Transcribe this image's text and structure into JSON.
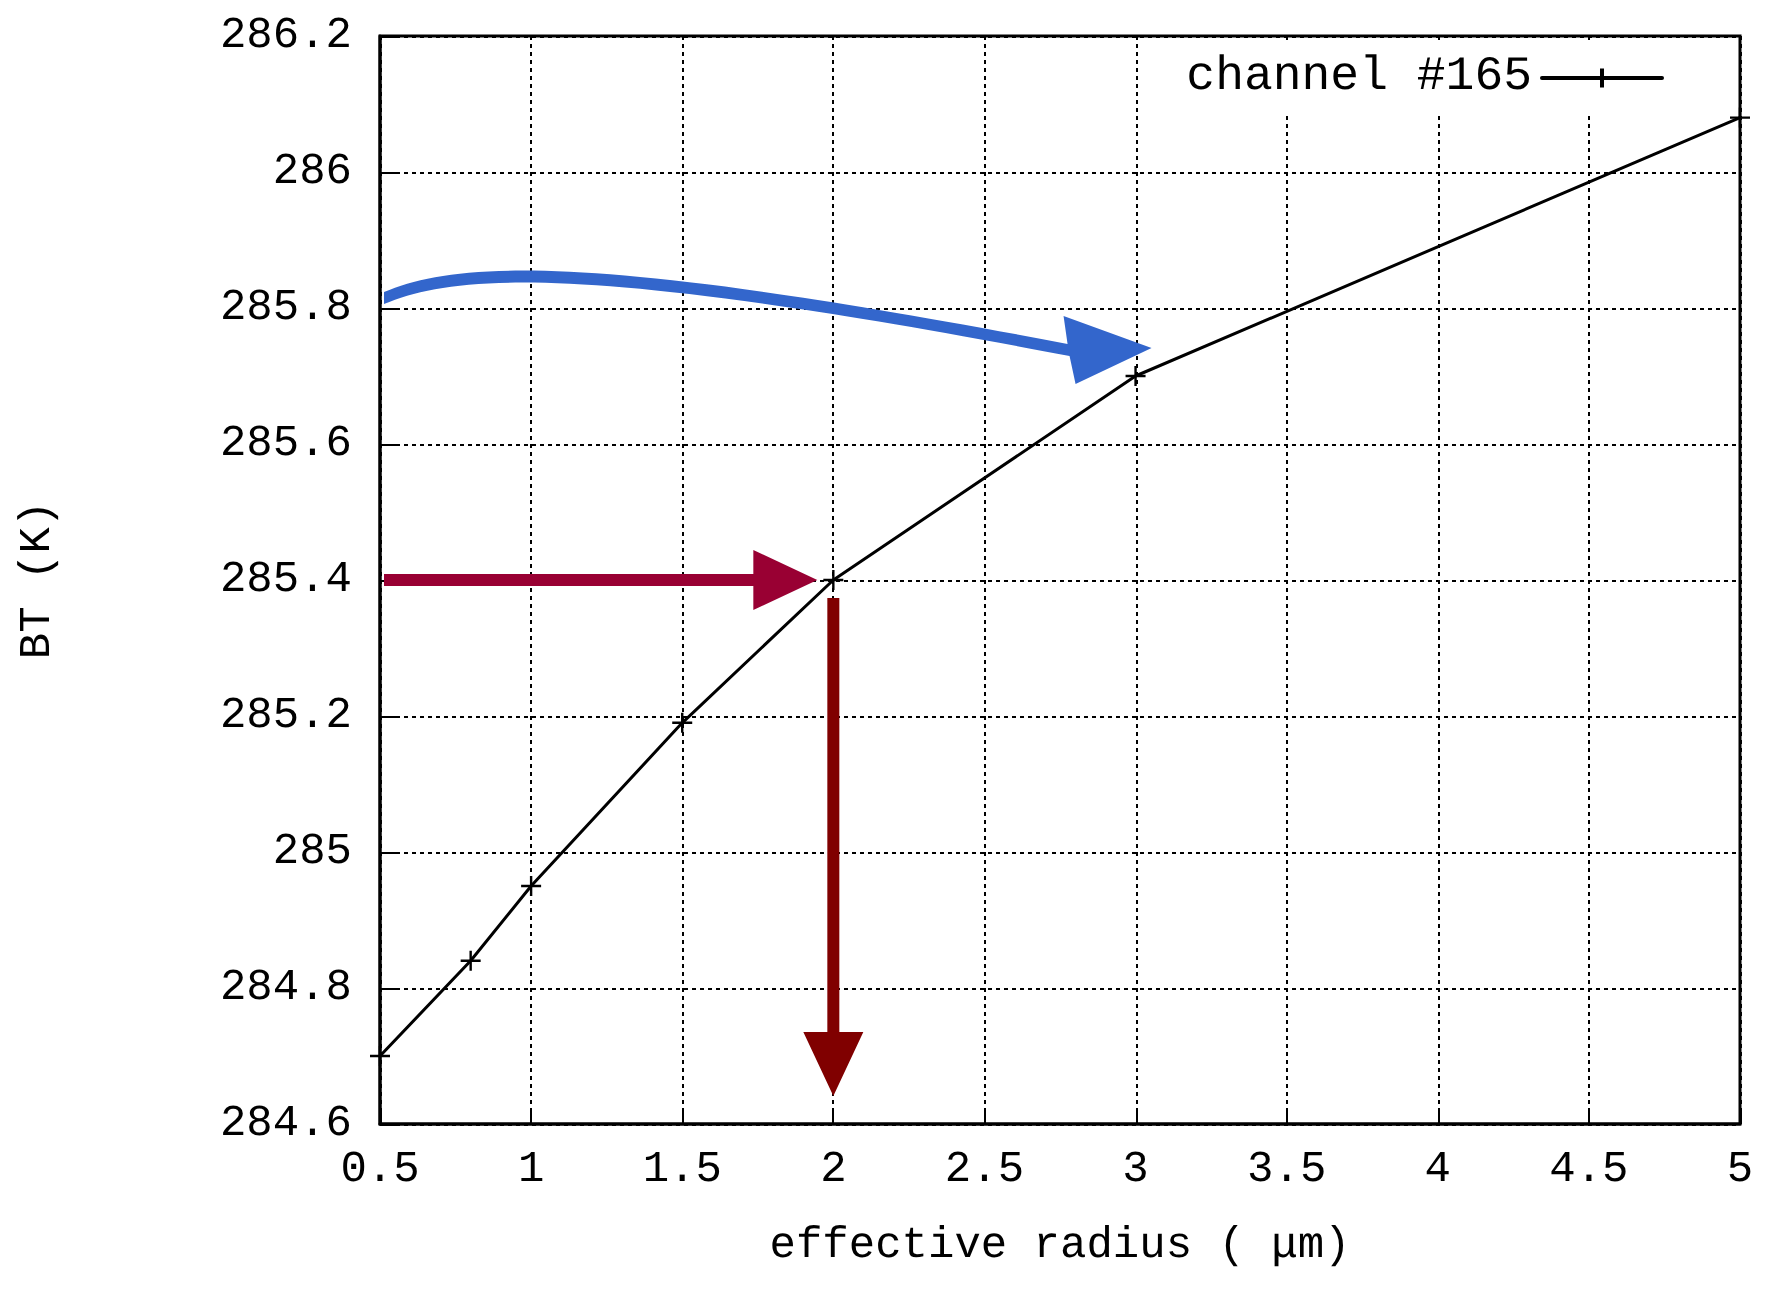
{
  "chart_data": {
    "type": "line",
    "xlabel": "effective radius ( μm)",
    "ylabel": "BT (K)",
    "x": [
      0.5,
      0.8,
      1,
      1.5,
      2,
      3,
      5
    ],
    "series": [
      {
        "name": "channel #165",
        "color": "#000000",
        "values": [
          284.7,
          284.84,
          284.95,
          285.19,
          285.4,
          285.7,
          286.08
        ]
      }
    ],
    "xlim": [
      0.5,
      5
    ],
    "xticks": [
      0.5,
      1,
      1.5,
      2,
      2.5,
      3,
      3.5,
      4,
      4.5,
      5
    ],
    "ylim": [
      284.6,
      286.2
    ],
    "yticks": [
      284.6,
      284.8,
      285,
      285.2,
      285.4,
      285.6,
      285.8,
      286,
      286.2
    ],
    "grid": true,
    "legend": "top right",
    "marker": "cross",
    "line_style": "solid"
  }
}
